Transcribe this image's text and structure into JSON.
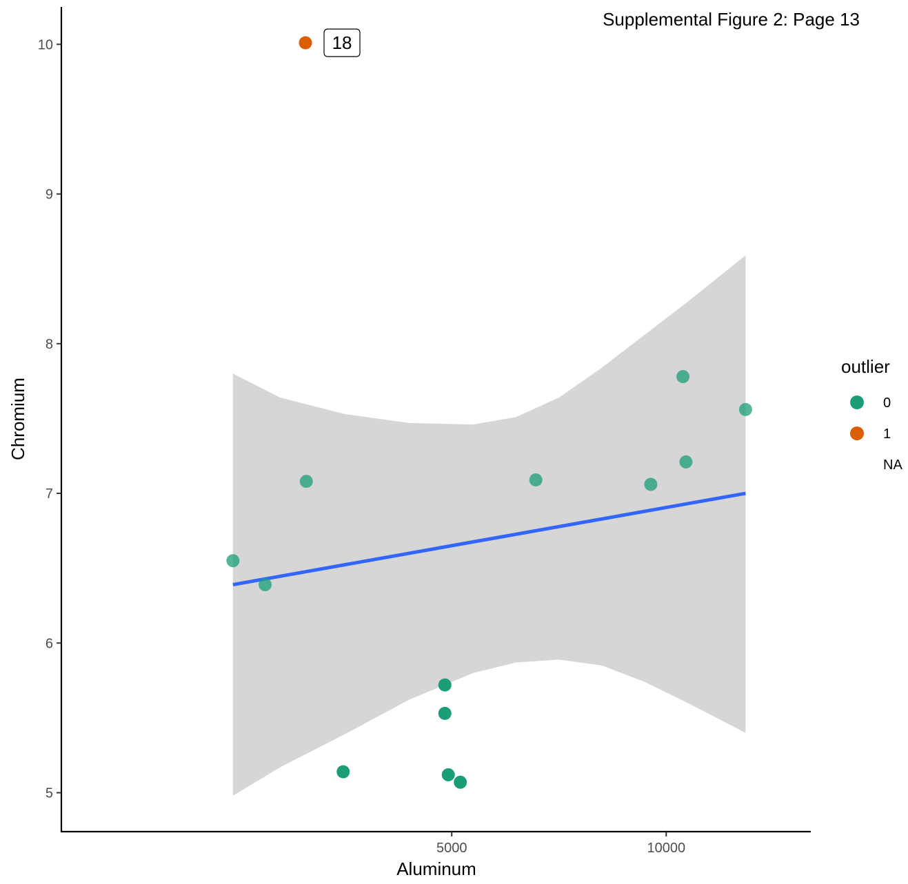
{
  "caption": "Supplemental Figure 2: Page 13",
  "chart_data": {
    "type": "scatter",
    "title": "",
    "xlabel": "Aluminum",
    "ylabel": "Chromium",
    "xlim": [
      -4100,
      13370
    ],
    "ylim": [
      4.74,
      10.25
    ],
    "x_ticks": [
      5000,
      10000
    ],
    "x_tick_labels": [
      "5000",
      "10000"
    ],
    "y_ticks": [
      5,
      6,
      7,
      8,
      9,
      10
    ],
    "y_tick_labels": [
      "5",
      "6",
      "7",
      "8",
      "9",
      "10"
    ],
    "grid": false,
    "legend": {
      "title": "outlier",
      "placement": "right",
      "entries": [
        {
          "label": "0",
          "color": "#1b9e77"
        },
        {
          "label": "1",
          "color": "#d95f02"
        },
        {
          "label": "NA",
          "color": null
        }
      ]
    },
    "points": [
      {
        "x": -100,
        "y": 6.55,
        "outlier": "0"
      },
      {
        "x": 650,
        "y": 6.39,
        "outlier": "0"
      },
      {
        "x": 1590,
        "y": 10.01,
        "outlier": "1",
        "label": "18"
      },
      {
        "x": 1610,
        "y": 7.08,
        "outlier": "0"
      },
      {
        "x": 2470,
        "y": 5.14,
        "outlier": "0"
      },
      {
        "x": 4840,
        "y": 5.72,
        "outlier": "0"
      },
      {
        "x": 4840,
        "y": 5.53,
        "outlier": "0"
      },
      {
        "x": 4920,
        "y": 5.12,
        "outlier": "0"
      },
      {
        "x": 5200,
        "y": 5.07,
        "outlier": "0"
      },
      {
        "x": 6960,
        "y": 7.09,
        "outlier": "0"
      },
      {
        "x": 9640,
        "y": 7.06,
        "outlier": "0"
      },
      {
        "x": 10390,
        "y": 7.78,
        "outlier": "0"
      },
      {
        "x": 10460,
        "y": 7.21,
        "outlier": "0"
      },
      {
        "x": 11850,
        "y": 7.56,
        "outlier": "0"
      }
    ],
    "fit_line": {
      "color": "#3366ff",
      "x": [
        -100,
        11850
      ],
      "y": [
        6.39,
        7.0
      ]
    },
    "confidence_band": {
      "color": "#d6d6d6",
      "x": [
        -100,
        1000,
        2500,
        4000,
        5500,
        6500,
        7500,
        8500,
        9500,
        10500,
        11850
      ],
      "upper": [
        7.8,
        7.64,
        7.53,
        7.47,
        7.46,
        7.51,
        7.64,
        7.84,
        8.06,
        8.28,
        8.59
      ],
      "lower": [
        4.98,
        5.17,
        5.39,
        5.62,
        5.8,
        5.87,
        5.89,
        5.85,
        5.74,
        5.6,
        5.4
      ]
    }
  }
}
